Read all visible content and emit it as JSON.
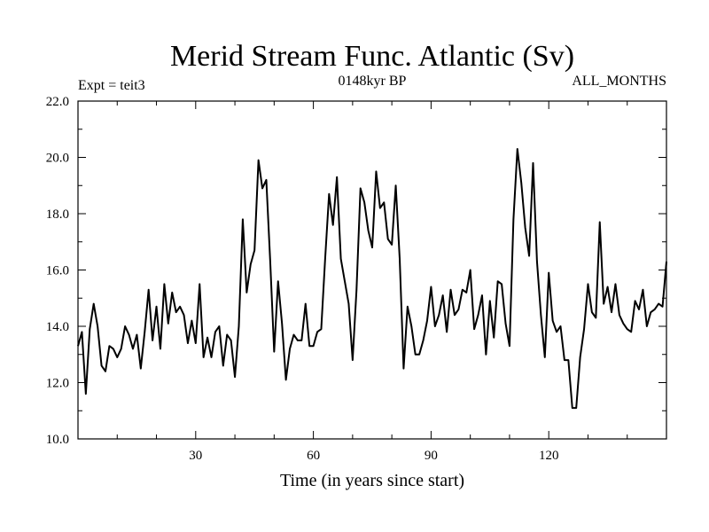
{
  "chart_data": {
    "type": "line",
    "title": "Merid Stream Func. Atlantic (Sv)",
    "subtitle_left": "Expt = teit3",
    "subtitle_center": "0148kyr BP",
    "subtitle_right": "ALL_MONTHS",
    "xlabel": "Time (in years since start)",
    "ylabel": "",
    "xlim": [
      0,
      150
    ],
    "ylim": [
      10,
      22
    ],
    "xticks": [
      30,
      60,
      90,
      120
    ],
    "yticks": [
      10.0,
      12.0,
      14.0,
      16.0,
      18.0,
      20.0,
      22.0
    ],
    "grid": false,
    "series": [
      {
        "color": "#000000",
        "x": [
          0,
          1,
          2,
          3,
          4,
          5,
          6,
          7,
          8,
          9,
          10,
          11,
          12,
          13,
          14,
          15,
          16,
          17,
          18,
          19,
          20,
          21,
          22,
          23,
          24,
          25,
          26,
          27,
          28,
          29,
          30,
          31,
          32,
          33,
          34,
          35,
          36,
          37,
          38,
          39,
          40,
          41,
          42,
          43,
          44,
          45,
          46,
          47,
          48,
          49,
          50,
          51,
          52,
          53,
          54,
          55,
          56,
          57,
          58,
          59,
          60,
          61,
          62,
          63,
          64,
          65,
          66,
          67,
          68,
          69,
          70,
          71,
          72,
          73,
          74,
          75,
          76,
          77,
          78,
          79,
          80,
          81,
          82,
          83,
          84,
          85,
          86,
          87,
          88,
          89,
          90,
          91,
          92,
          93,
          94,
          95,
          96,
          97,
          98,
          99,
          100,
          101,
          102,
          103,
          104,
          105,
          106,
          107,
          108,
          109,
          110,
          111,
          112,
          113,
          114,
          115,
          116,
          117,
          118,
          119,
          120,
          121,
          122,
          123,
          124,
          125,
          126,
          127,
          128,
          129,
          130,
          131,
          132,
          133,
          134,
          135,
          136,
          137,
          138,
          139,
          140,
          141,
          142,
          143,
          144,
          145,
          146,
          147,
          148,
          149,
          150
        ],
        "values": [
          13.3,
          13.8,
          11.6,
          13.9,
          14.8,
          14.0,
          12.6,
          12.4,
          13.3,
          13.2,
          12.9,
          13.2,
          14.0,
          13.7,
          13.2,
          13.7,
          12.5,
          13.8,
          15.3,
          13.5,
          14.7,
          13.2,
          15.5,
          14.1,
          15.2,
          14.5,
          14.7,
          14.4,
          13.4,
          14.2,
          13.4,
          15.5,
          12.9,
          13.6,
          12.9,
          13.8,
          14.0,
          12.6,
          13.7,
          13.5,
          12.2,
          14.0,
          17.8,
          15.2,
          16.2,
          16.7,
          19.9,
          18.9,
          19.2,
          16.3,
          13.1,
          15.6,
          14.1,
          12.1,
          13.2,
          13.7,
          13.5,
          13.5,
          14.8,
          13.3,
          13.3,
          13.8,
          13.9,
          16.4,
          18.7,
          17.6,
          19.3,
          16.4,
          15.6,
          14.8,
          12.8,
          15.3,
          18.9,
          18.4,
          17.4,
          16.8,
          19.5,
          18.2,
          18.4,
          17.1,
          16.9,
          19.0,
          16.4,
          12.5,
          14.7,
          14.0,
          13.0,
          13.0,
          13.5,
          14.2,
          15.4,
          14.0,
          14.4,
          15.1,
          13.8,
          15.3,
          14.4,
          14.6,
          15.3,
          15.2,
          16.0,
          13.9,
          14.4,
          15.1,
          13.0,
          14.9,
          13.6,
          15.6,
          15.5,
          14.1,
          13.3,
          17.8,
          20.3,
          19.1,
          17.5,
          16.5,
          19.8,
          16.3,
          14.4,
          12.9,
          15.9,
          14.2,
          13.8,
          14.0,
          12.8,
          12.8,
          11.1,
          11.1,
          12.9,
          13.9,
          15.5,
          14.5,
          14.3,
          17.7,
          14.8,
          15.4,
          14.5,
          15.5,
          14.4,
          14.1,
          13.9,
          13.8,
          14.9,
          14.6,
          15.3,
          14.0,
          14.5,
          14.6,
          14.8,
          14.7,
          16.3
        ]
      }
    ]
  }
}
